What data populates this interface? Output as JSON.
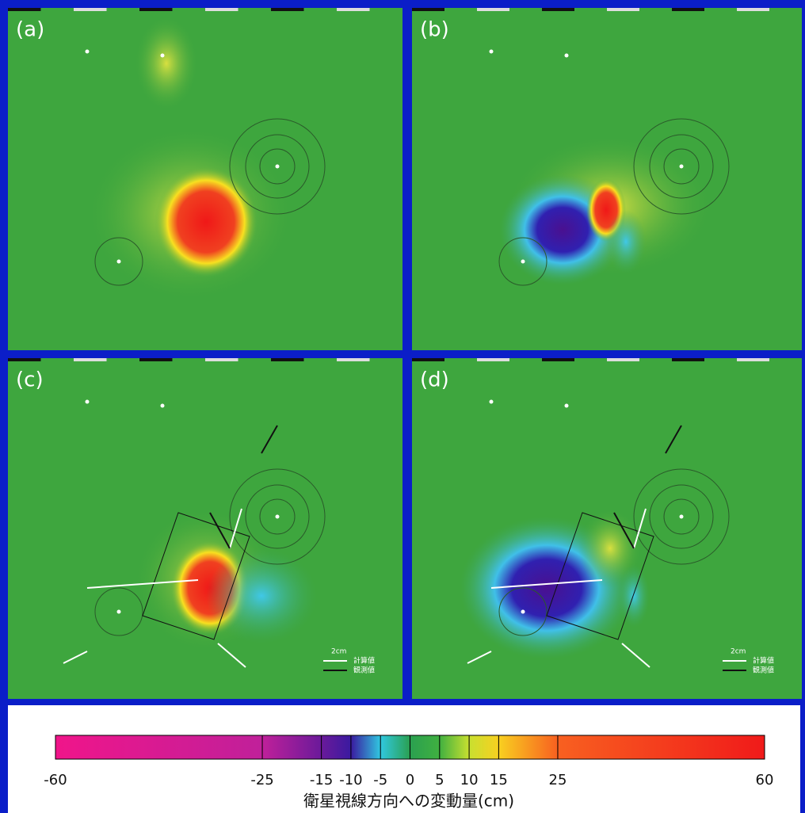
{
  "panels": [
    {
      "label": "(a)"
    },
    {
      "label": "(b)"
    },
    {
      "label": "(c)",
      "legend": [
        "2cm",
        "計算値",
        "観測値"
      ]
    },
    {
      "label": "(d)",
      "legend": [
        "2cm",
        "計算値",
        "観測値"
      ]
    }
  ],
  "colorbar": {
    "lim": [
      -60,
      60
    ],
    "ticks": [
      -60,
      -25,
      -15,
      -10,
      -5,
      0,
      5,
      10,
      15,
      25,
      60
    ],
    "colors": [
      "#f0158a",
      "#c0209a",
      "#6a1a9a",
      "#3a1aa0",
      "#30c8e0",
      "#2aa050",
      "#40b040",
      "#c8e030",
      "#f8d020",
      "#f86020",
      "#f01a1a"
    ],
    "label": "衛星視線方向への変動量(cm)"
  }
}
